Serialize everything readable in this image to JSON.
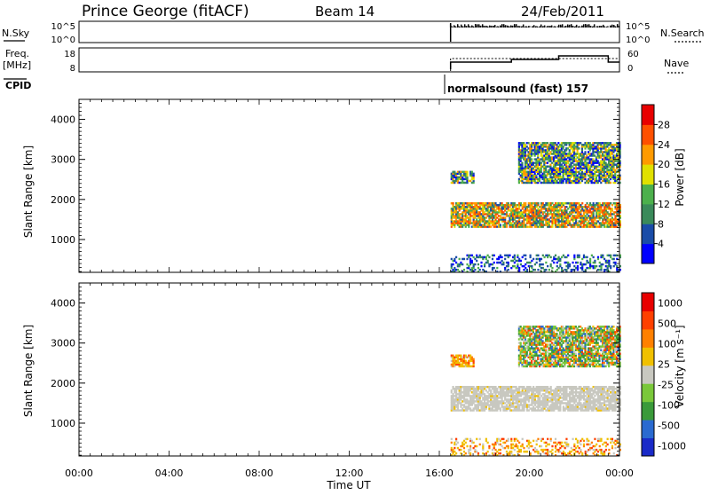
{
  "header": {
    "title": "Prince George (fitACF)",
    "beam": "Beam 14",
    "date": "24/Feb/2011"
  },
  "status": {
    "nsky_label": "N.Sky",
    "nsky_ticks": [
      "10^5",
      "10^0"
    ],
    "nsearch_label": "N.Search",
    "nsearch_ticks": [
      "10^5",
      "10^0"
    ],
    "freq_label": "Freq.",
    "freq_unit": "[MHz]",
    "freq_ticks": [
      "18",
      "8"
    ],
    "nave_label": "Nave",
    "nave_ticks": [
      "60",
      "0"
    ],
    "cpid_label": "CPID",
    "cpid_text": "normalsound (fast) 157"
  },
  "chart_data": [
    {
      "type": "heatmap",
      "name": "power",
      "xlabel": "",
      "ylabel": "Slant Range [km]",
      "yticks": [
        "1000",
        "2000",
        "3000",
        "4000"
      ],
      "ylim": [
        180,
        4500
      ],
      "xlim": [
        0,
        24
      ],
      "colorbar_label": "Power [dB]",
      "colorbar_ticks": [
        "4",
        "8",
        "12",
        "16",
        "20",
        "24",
        "28"
      ],
      "colorbar_colors": [
        "#0000ff",
        "#1a4ca8",
        "#3a8a5a",
        "#4cb04c",
        "#e0e000",
        "#ff9a00",
        "#ff5000",
        "#e80000"
      ],
      "data_start_hour": 16.5,
      "bands": [
        {
          "t0": 16.5,
          "t1": 24,
          "r0": 1300,
          "r1": 1900,
          "level": "high"
        },
        {
          "t0": 19.5,
          "t1": 24,
          "r0": 2400,
          "r1": 3400,
          "level": "mid"
        },
        {
          "t0": 16.5,
          "t1": 17.5,
          "r0": 2400,
          "r1": 2700,
          "level": "mid"
        },
        {
          "t0": 16.5,
          "t1": 24,
          "r0": 180,
          "r1": 600,
          "level": "low"
        }
      ]
    },
    {
      "type": "heatmap",
      "name": "velocity",
      "xlabel": "Time UT",
      "ylabel": "Slant Range [km]",
      "yticks": [
        "1000",
        "2000",
        "3000",
        "4000"
      ],
      "ylim": [
        180,
        4500
      ],
      "xlim": [
        0,
        24
      ],
      "xticks": [
        "00:00",
        "04:00",
        "08:00",
        "12:00",
        "16:00",
        "20:00",
        "00:00"
      ],
      "colorbar_label": "Velocity [m s⁻¹]",
      "colorbar_ticks": [
        "1000",
        "500",
        "100",
        "25",
        "-25",
        "-100",
        "-500",
        "-1000"
      ],
      "colorbar_colors": [
        "#1a2ac8",
        "#2a6ad0",
        "#3a9a3a",
        "#7ac83a",
        "#c8c8c0",
        "#f0c000",
        "#ff8000",
        "#ff4000",
        "#e80000"
      ],
      "bands": [
        {
          "t0": 16.5,
          "t1": 24,
          "r0": 1300,
          "r1": 1900,
          "level": "ground"
        },
        {
          "t0": 19.5,
          "t1": 24,
          "r0": 2400,
          "r1": 3400,
          "level": "ionos"
        },
        {
          "t0": 16.5,
          "t1": 17.5,
          "r0": 2400,
          "r1": 2700,
          "level": "neg"
        },
        {
          "t0": 16.5,
          "t1": 24,
          "r0": 180,
          "r1": 600,
          "level": "neg"
        }
      ]
    }
  ]
}
